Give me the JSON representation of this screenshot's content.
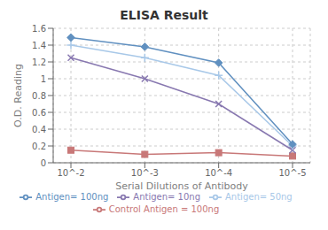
{
  "chart_data": {
    "type": "line",
    "title": "ELISA Result",
    "xlabel": "Serial Dilutions  of Antibody",
    "ylabel": "O.D. Reading",
    "categories": [
      "10^-2",
      "10^-3",
      "10^-4",
      "10^-5"
    ],
    "series": [
      {
        "name": "Control Antigen = 100ng",
        "color": "#c87878",
        "marker": "square",
        "values": [
          0.15,
          0.1,
          0.12,
          0.08
        ]
      },
      {
        "name": "Antigen= 10ng",
        "color": "#8878b0",
        "marker": "x",
        "values": [
          1.25,
          1.0,
          0.7,
          0.15
        ]
      },
      {
        "name": "Antigen= 50ng",
        "color": "#a8c8e8",
        "marker": "plus",
        "values": [
          1.4,
          1.25,
          1.04,
          0.2
        ]
      },
      {
        "name": "Antigen= 100ng",
        "color": "#6090c0",
        "marker": "diamond",
        "values": [
          1.49,
          1.38,
          1.19,
          0.22
        ]
      }
    ],
    "ylim": [
      0,
      1.6
    ],
    "yticks": [
      0,
      0.2,
      0.4,
      0.6,
      0.8,
      1,
      1.2,
      1.4,
      1.6
    ],
    "grid": true,
    "legend": "bottom"
  }
}
